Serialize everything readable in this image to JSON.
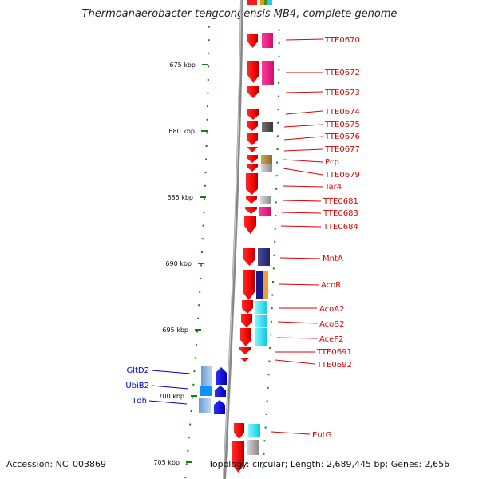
{
  "title": "Thermoanaerobacter tengcongensis MB4, complete genome",
  "accession": "Accession: NC_003869",
  "topology": "Topology: circular; Length: 2,689,445 bp; Genes: 2,656",
  "colors": {
    "backbone": "#999999",
    "ticks": "#1a7a1a",
    "forward_gene": "#ff1010",
    "label_red": "#dd0000",
    "label_blue": "#0000cc",
    "reverse_gene": "#0000ee"
  },
  "scale_labels": [
    "675 kbp",
    "680 kbp",
    "685 kbp",
    "690 kbp",
    "695 kbp",
    "700 kbp",
    "705 kbp"
  ],
  "genes_right": [
    {
      "label": "TTE0670"
    },
    {
      "label": "TTE0672"
    },
    {
      "label": "TTE0673"
    },
    {
      "label": "TTE0674"
    },
    {
      "label": "TTE0675"
    },
    {
      "label": "TTE0676"
    },
    {
      "label": "TTE0677"
    },
    {
      "label": "Pcp"
    },
    {
      "label": "TTE0679"
    },
    {
      "label": "Tar4"
    },
    {
      "label": "TTE0681"
    },
    {
      "label": "TTE0683"
    },
    {
      "label": "TTE0684"
    },
    {
      "label": "MntA"
    },
    {
      "label": "AcoR"
    },
    {
      "label": "AcoA2"
    },
    {
      "label": "AcoB2"
    },
    {
      "label": "AceF2"
    },
    {
      "label": "TTE0691"
    },
    {
      "label": "TTE0692"
    },
    {
      "label": "EutG"
    }
  ],
  "genes_left": [
    {
      "label": "GltD2"
    },
    {
      "label": "UbiB2"
    },
    {
      "label": "Tdh"
    }
  ]
}
